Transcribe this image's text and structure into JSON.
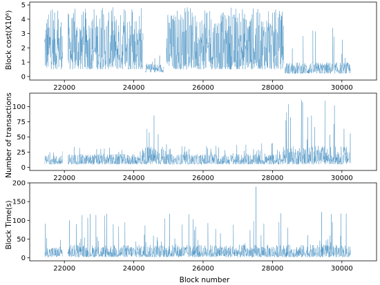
{
  "figure": {
    "xlabel": "Block number",
    "series_color": "#1f77b4"
  },
  "chart_data": [
    {
      "type": "line",
      "ylabel": "Block cost(X10⁶)",
      "xlim": [
        21000,
        31000
      ],
      "ylim": [
        -0.25,
        5.2
      ],
      "xticks": [
        22000,
        24000,
        26000,
        28000,
        30000
      ],
      "xtick_labels": [
        "22000",
        "24000",
        "26000",
        "28000",
        "30000"
      ],
      "yticks": [
        0,
        1,
        2,
        3,
        4,
        5
      ],
      "ytick_labels": [
        "0",
        "1",
        "2",
        "3",
        "4",
        "5"
      ],
      "x_gaps": [
        [
          21950,
          22100
        ],
        [
          24270,
          24330
        ],
        [
          24870,
          24940
        ],
        [
          28330,
          28360
        ]
      ],
      "segments": [
        {
          "x": [
            21430,
            21950
          ],
          "typical_range": [
            0.5,
            4.5
          ],
          "spike_max": 4.85
        },
        {
          "x": [
            22100,
            24270
          ],
          "typical_range": [
            0.5,
            4.5
          ],
          "spike_max": 4.85
        },
        {
          "x": [
            24330,
            24870
          ],
          "typical_range": [
            0.3,
            0.9
          ],
          "spike_max": 1.5
        },
        {
          "x": [
            24940,
            28330
          ],
          "typical_range": [
            0.5,
            4.5
          ],
          "spike_max": 4.85
        },
        {
          "x": [
            28360,
            30250
          ],
          "typical_range": [
            0.2,
            1.0
          ],
          "spike_max": 3.5
        }
      ],
      "grid": false
    },
    {
      "type": "line",
      "ylabel": "Number of transactions",
      "xlim": [
        21000,
        31000
      ],
      "ylim": [
        -5,
        122
      ],
      "xticks": [
        22000,
        24000,
        26000,
        28000,
        30000
      ],
      "xtick_labels": [
        "22000",
        "24000",
        "26000",
        "28000",
        "30000"
      ],
      "yticks": [
        0,
        25,
        50,
        75,
        100
      ],
      "ytick_labels": [
        "0",
        "25",
        "50",
        "75",
        "100"
      ],
      "x_gaps": [
        [
          21950,
          22100
        ]
      ],
      "segments": [
        {
          "x": [
            21430,
            21950
          ],
          "typical_range": [
            5,
            20
          ],
          "spike_max": 28
        },
        {
          "x": [
            22100,
            24250
          ],
          "typical_range": [
            5,
            22
          ],
          "spike_max": 35
        },
        {
          "x": [
            24250,
            24900
          ],
          "typical_range": [
            5,
            35
          ],
          "spike_max": 88
        },
        {
          "x": [
            24900,
            28300
          ],
          "typical_range": [
            5,
            22
          ],
          "spike_max": 40
        },
        {
          "x": [
            28300,
            30250
          ],
          "typical_range": [
            5,
            35
          ],
          "spike_max": 115
        }
      ],
      "grid": false
    },
    {
      "type": "line",
      "ylabel": "Block Time(s)",
      "xlim": [
        21000,
        31000
      ],
      "ylim": [
        -8,
        200
      ],
      "xticks": [
        22000,
        24000,
        26000,
        28000,
        30000
      ],
      "xtick_labels": [
        "22000",
        "24000",
        "26000",
        "28000",
        "30000"
      ],
      "yticks": [
        0,
        50,
        100,
        150,
        200
      ],
      "ytick_labels": [
        "0",
        "50",
        "100",
        "150",
        "200"
      ],
      "x_gaps": [
        [
          21950,
          22100
        ]
      ],
      "segments": [
        {
          "x": [
            21430,
            21950
          ],
          "typical_range": [
            2,
            30
          ],
          "spike_max": 100
        },
        {
          "x": [
            22100,
            30250
          ],
          "typical_range": [
            2,
            35
          ],
          "spike_max": 120
        }
      ],
      "peaks": [
        {
          "x": 27520,
          "y": 190
        },
        {
          "x": 22150,
          "y": 100
        },
        {
          "x": 29420,
          "y": 122
        }
      ],
      "grid": false
    }
  ]
}
